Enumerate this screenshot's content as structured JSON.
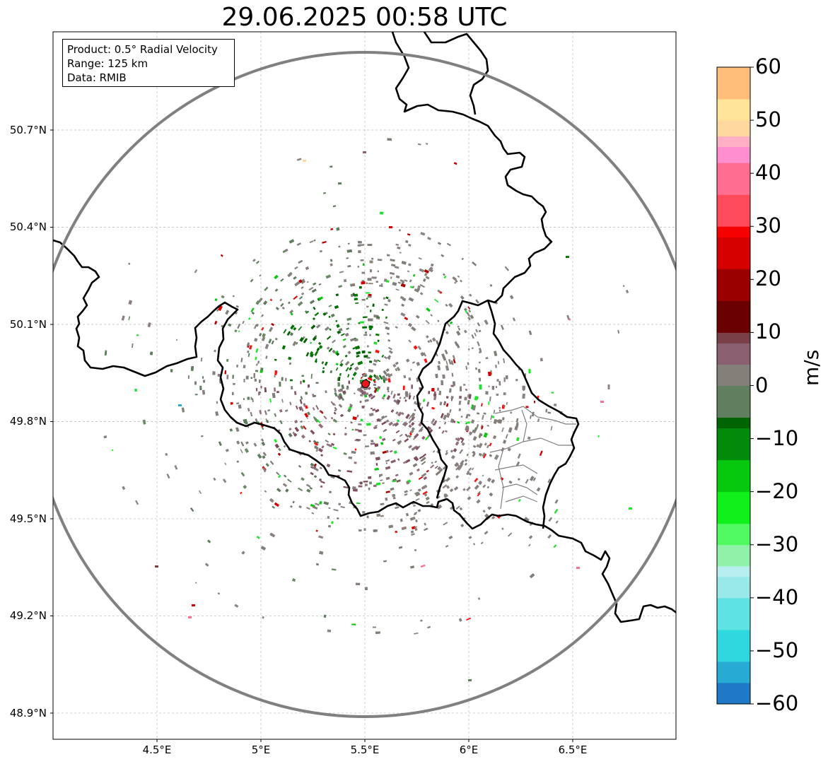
{
  "title": "29.06.2025 00:58 UTC",
  "info_box": {
    "product": "Product: 0.5° Radial Velocity",
    "range": "Range: 125 km",
    "data": "Data: RMIB"
  },
  "map": {
    "extent_lon": [
      4.0,
      7.0
    ],
    "extent_lat": [
      48.8,
      51.0
    ],
    "radar_site": {
      "lon": 5.505,
      "lat": 49.914
    },
    "range_ring_km": 125,
    "lat_ticks": [
      {
        "value": 50.7,
        "label": "50.7°N"
      },
      {
        "value": 50.4,
        "label": "50.4°N"
      },
      {
        "value": 50.1,
        "label": "50.1°N"
      },
      {
        "value": 49.8,
        "label": "49.8°N"
      },
      {
        "value": 49.5,
        "label": "49.5°N"
      },
      {
        "value": 49.2,
        "label": "49.2°N"
      },
      {
        "value": 48.9,
        "label": "48.9°N"
      }
    ],
    "lon_ticks": [
      {
        "value": 4.5,
        "label": "4.5°E"
      },
      {
        "value": 5.0,
        "label": "5°E"
      },
      {
        "value": 5.5,
        "label": "5.5°E"
      },
      {
        "value": 6.0,
        "label": "6°E"
      },
      {
        "value": 6.5,
        "label": "6.5°E"
      }
    ],
    "colors": {
      "border": "#000000",
      "regional_border": "#7f7f7f",
      "range_ring": "#808080",
      "grid": "#b0b0b0",
      "radar_marker": "#e8191d"
    }
  },
  "colorbar": {
    "unit": "m/s",
    "min": -60,
    "max": 60,
    "ticks": [
      {
        "value": 60,
        "label": "60"
      },
      {
        "value": 50,
        "label": "50"
      },
      {
        "value": 40,
        "label": "40"
      },
      {
        "value": 30,
        "label": "30"
      },
      {
        "value": 20,
        "label": "20"
      },
      {
        "value": 10,
        "label": "10"
      },
      {
        "value": 0,
        "label": "0"
      },
      {
        "value": -10,
        "label": "−10"
      },
      {
        "value": -20,
        "label": "−20"
      },
      {
        "value": -30,
        "label": "−30"
      },
      {
        "value": -40,
        "label": "−40"
      },
      {
        "value": -50,
        "label": "−50"
      },
      {
        "value": -60,
        "label": "−60"
      }
    ],
    "stops": [
      {
        "v": -60,
        "c": "#1f78c8"
      },
      {
        "v": -56,
        "c": "#27aad4"
      },
      {
        "v": -52,
        "c": "#2ed8dc"
      },
      {
        "v": -46,
        "c": "#5ee2e2"
      },
      {
        "v": -40,
        "c": "#9ae9ea"
      },
      {
        "v": -36,
        "c": "#b8eef0"
      },
      {
        "v": -34,
        "c": "#90f2a8"
      },
      {
        "v": -30,
        "c": "#52fa62"
      },
      {
        "v": -26,
        "c": "#10f01a"
      },
      {
        "v": -20,
        "c": "#06c80e"
      },
      {
        "v": -14,
        "c": "#028a0a"
      },
      {
        "v": -8,
        "c": "#006400"
      },
      {
        "v": -6,
        "c": "#5f7f5f"
      },
      {
        "v": 0,
        "c": "#857f7a"
      },
      {
        "v": 4,
        "c": "#8a6070"
      },
      {
        "v": 8,
        "c": "#7a4048"
      },
      {
        "v": 10,
        "c": "#6a0000"
      },
      {
        "v": 16,
        "c": "#9a0000"
      },
      {
        "v": 22,
        "c": "#d60000"
      },
      {
        "v": 28,
        "c": "#f70000"
      },
      {
        "v": 30,
        "c": "#ff4a5a"
      },
      {
        "v": 36,
        "c": "#ff6e90"
      },
      {
        "v": 42,
        "c": "#ff8ed0"
      },
      {
        "v": 45,
        "c": "#ffb0c4"
      },
      {
        "v": 47,
        "c": "#ffd8a0"
      },
      {
        "v": 50,
        "c": "#ffe49a"
      },
      {
        "v": 54,
        "c": "#ffbe7a"
      },
      {
        "v": 60,
        "c": "#ff9a58"
      }
    ]
  }
}
